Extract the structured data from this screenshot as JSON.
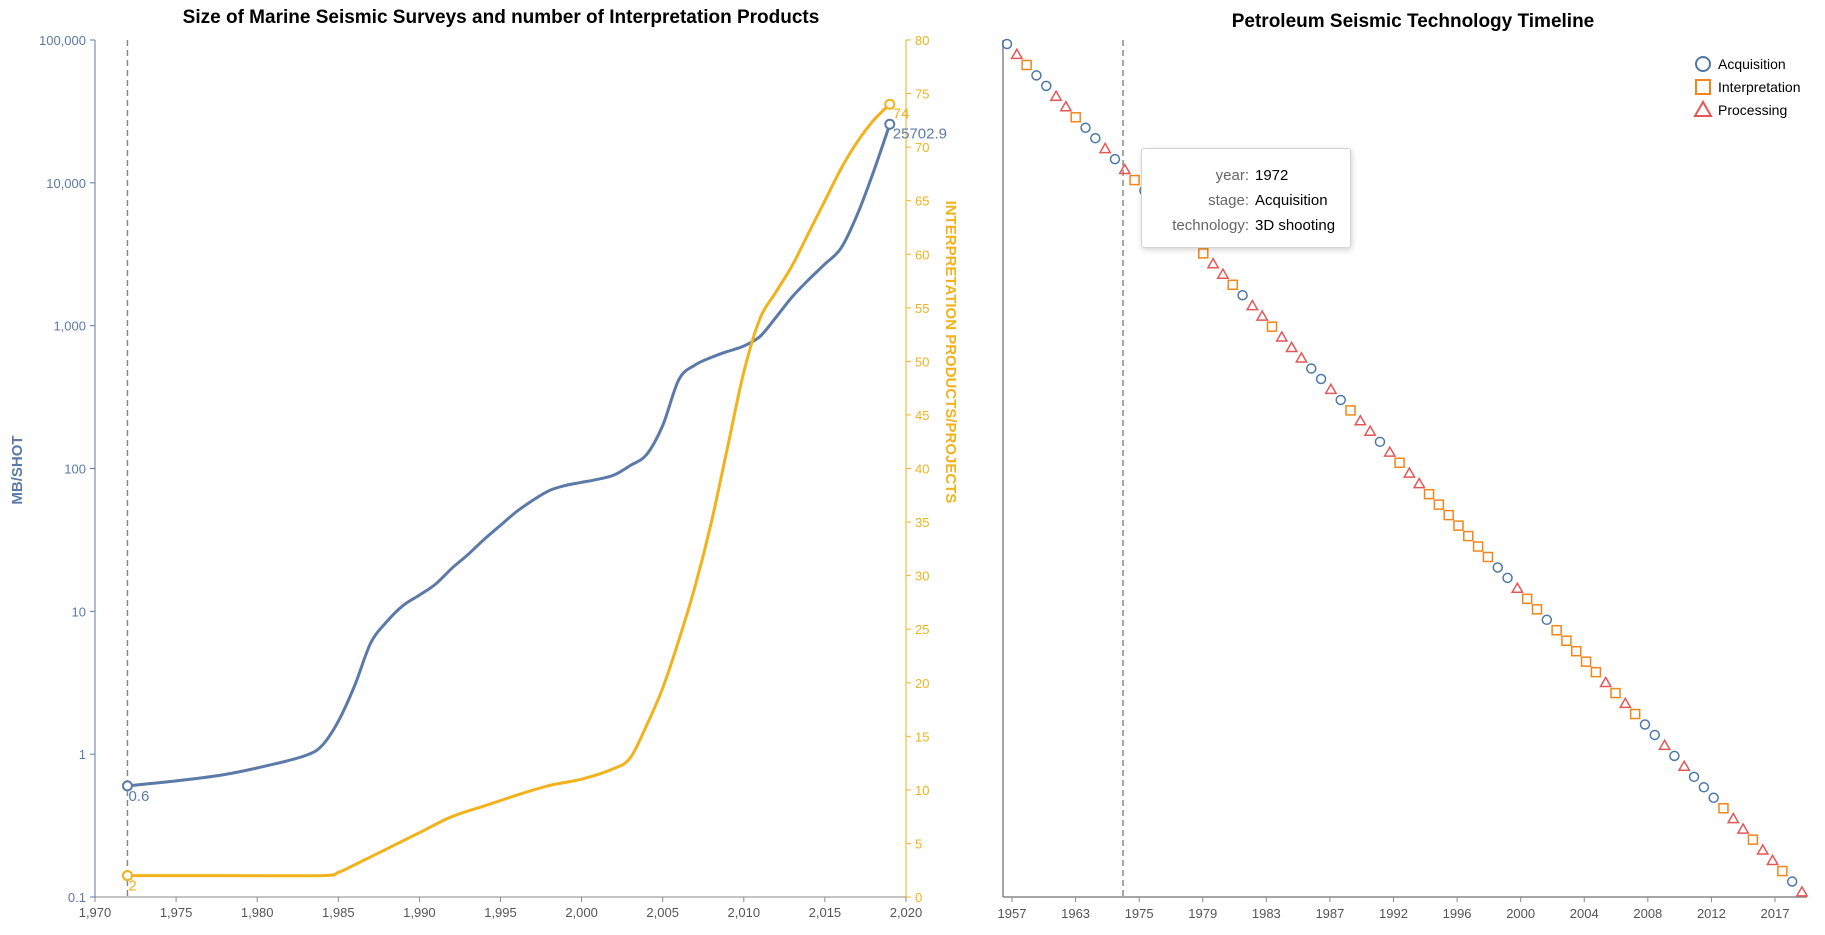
{
  "chart_data": [
    {
      "type": "line",
      "title": "Size of Marine Seismic Surveys and number of Interpretation Products",
      "xlabel": "",
      "x_ticks": [
        "1,970",
        "1,975",
        "1,980",
        "1,985",
        "1,990",
        "1,995",
        "2,000",
        "2,005",
        "2,010",
        "2,015",
        "2,020"
      ],
      "xlim": [
        1970,
        2020
      ],
      "y_left": {
        "label": "MB/SHOT",
        "scale": "log",
        "ylim": [
          0.1,
          100000
        ],
        "ticks": [
          {
            "value": 0.1,
            "label": "0.1"
          },
          {
            "value": 1,
            "label": "1"
          },
          {
            "value": 10,
            "label": "10"
          },
          {
            "value": 100,
            "label": "100"
          },
          {
            "value": 1000,
            "label": "1,000"
          },
          {
            "value": 10000,
            "label": "10,000"
          },
          {
            "value": 100000,
            "label": "100,000"
          }
        ]
      },
      "y_right": {
        "label": "INTERPRETATION PRODUCTS/PROJECTS",
        "scale": "linear",
        "ylim": [
          0,
          80
        ],
        "ticks": [
          "0",
          "5",
          "10",
          "15",
          "20",
          "25",
          "30",
          "35",
          "40",
          "45",
          "50",
          "55",
          "60",
          "65",
          "70",
          "75",
          "80"
        ]
      },
      "series": [
        {
          "axis": "left",
          "color": "#5b7aa8",
          "points": [
            [
              1972,
              0.6
            ],
            [
              1975,
              0.65
            ],
            [
              1978,
              0.72
            ],
            [
              1981,
              0.85
            ],
            [
              1983,
              0.98
            ],
            [
              1984,
              1.15
            ],
            [
              1985,
              1.7
            ],
            [
              1986,
              3.0
            ],
            [
              1987,
              6.0
            ],
            [
              1988,
              8.5
            ],
            [
              1989,
              11
            ],
            [
              1990,
              13
            ],
            [
              1991,
              15.5
            ],
            [
              1992,
              20
            ],
            [
              1993,
              25
            ],
            [
              1994,
              32
            ],
            [
              1995,
              40
            ],
            [
              1996,
              50
            ],
            [
              1997,
              60
            ],
            [
              1998,
              70
            ],
            [
              1999,
              76
            ],
            [
              2000,
              80
            ],
            [
              2001,
              84
            ],
            [
              2002,
              90
            ],
            [
              2003,
              105
            ],
            [
              2004,
              125
            ],
            [
              2005,
              200
            ],
            [
              2006,
              420
            ],
            [
              2007,
              530
            ],
            [
              2008,
              600
            ],
            [
              2009,
              660
            ],
            [
              2010,
              720
            ],
            [
              2011,
              840
            ],
            [
              2012,
              1150
            ],
            [
              2013,
              1600
            ],
            [
              2014,
              2100
            ],
            [
              2015,
              2700
            ],
            [
              2016,
              3500
            ],
            [
              2017,
              6000
            ],
            [
              2018,
              12000
            ],
            [
              2019,
              25702.9
            ]
          ],
          "start_label": "0.6",
          "end_label": "25702.9"
        },
        {
          "axis": "right",
          "color": "#f2b21b",
          "points": [
            [
              1972,
              2
            ],
            [
              1978,
              2
            ],
            [
              1984,
              2
            ],
            [
              1985,
              2.3
            ],
            [
              1986,
              3
            ],
            [
              1988,
              4.5
            ],
            [
              1990,
              6
            ],
            [
              1992,
              7.5
            ],
            [
              1994,
              8.5
            ],
            [
              1996,
              9.5
            ],
            [
              1998,
              10.4
            ],
            [
              2000,
              11
            ],
            [
              2002,
              12
            ],
            [
              2003,
              13
            ],
            [
              2004,
              16
            ],
            [
              2005,
              19.5
            ],
            [
              2006,
              24
            ],
            [
              2007,
              29
            ],
            [
              2008,
              35
            ],
            [
              2009,
              42
            ],
            [
              2010,
              49
            ],
            [
              2011,
              54
            ],
            [
              2012,
              56.5
            ],
            [
              2013,
              59
            ],
            [
              2014,
              62
            ],
            [
              2015,
              65
            ],
            [
              2016,
              68
            ],
            [
              2017,
              70.5
            ],
            [
              2018,
              72.5
            ],
            [
              2019,
              74
            ]
          ],
          "start_label": "2",
          "end_label": "74"
        }
      ]
    },
    {
      "type": "scatter",
      "title": "Petroleum Seismic Technology Timeline",
      "x_ticks": [
        "1957",
        "1963",
        "1975",
        "1979",
        "1983",
        "1987",
        "1992",
        "1996",
        "2000",
        "2004",
        "2008",
        "2012",
        "2017"
      ],
      "legend": {
        "placement": "top-right",
        "entries": [
          {
            "label": "Acquisition",
            "shape": "circle",
            "color": "#4c78a8"
          },
          {
            "label": "Interpretation",
            "shape": "square",
            "color": "#f58518"
          },
          {
            "label": "Processing",
            "shape": "triangle",
            "color": "#e45756"
          }
        ]
      },
      "points": [
        [
          "Acquisition",
          0
        ],
        [
          "Processing",
          1
        ],
        [
          "Interpretation",
          2
        ],
        [
          "Acquisition",
          3
        ],
        [
          "Acquisition",
          4
        ],
        [
          "Processing",
          5
        ],
        [
          "Processing",
          6
        ],
        [
          "Interpretation",
          7
        ],
        [
          "Acquisition",
          8
        ],
        [
          "Acquisition",
          9
        ],
        [
          "Processing",
          10
        ],
        [
          "Acquisition",
          11
        ],
        [
          "Processing",
          12
        ],
        [
          "Interpretation",
          13
        ],
        [
          "Acquisition",
          14
        ],
        [
          "Processing",
          15
        ],
        [
          "Acquisition",
          16
        ],
        [
          "Interpretation",
          17
        ],
        [
          "Acquisition",
          18
        ],
        [
          "Processing",
          19
        ],
        [
          "Interpretation",
          20
        ],
        [
          "Processing",
          21
        ],
        [
          "Processing",
          22
        ],
        [
          "Interpretation",
          23
        ],
        [
          "Acquisition",
          24
        ],
        [
          "Processing",
          25
        ],
        [
          "Processing",
          26
        ],
        [
          "Interpretation",
          27
        ],
        [
          "Processing",
          28
        ],
        [
          "Processing",
          29
        ],
        [
          "Processing",
          30
        ],
        [
          "Acquisition",
          31
        ],
        [
          "Acquisition",
          32
        ],
        [
          "Processing",
          33
        ],
        [
          "Acquisition",
          34
        ],
        [
          "Interpretation",
          35
        ],
        [
          "Processing",
          36
        ],
        [
          "Processing",
          37
        ],
        [
          "Acquisition",
          38
        ],
        [
          "Processing",
          39
        ],
        [
          "Interpretation",
          40
        ],
        [
          "Processing",
          41
        ],
        [
          "Processing",
          42
        ],
        [
          "Interpretation",
          43
        ],
        [
          "Interpretation",
          44
        ],
        [
          "Interpretation",
          45
        ],
        [
          "Interpretation",
          46
        ],
        [
          "Interpretation",
          47
        ],
        [
          "Interpretation",
          48
        ],
        [
          "Interpretation",
          49
        ],
        [
          "Acquisition",
          50
        ],
        [
          "Acquisition",
          51
        ],
        [
          "Processing",
          52
        ],
        [
          "Interpretation",
          53
        ],
        [
          "Interpretation",
          54
        ],
        [
          "Acquisition",
          55
        ],
        [
          "Interpretation",
          56
        ],
        [
          "Interpretation",
          57
        ],
        [
          "Interpretation",
          58
        ],
        [
          "Interpretation",
          59
        ],
        [
          "Interpretation",
          60
        ],
        [
          "Processing",
          61
        ],
        [
          "Interpretation",
          62
        ],
        [
          "Processing",
          63
        ],
        [
          "Interpretation",
          64
        ],
        [
          "Acquisition",
          65
        ],
        [
          "Acquisition",
          66
        ],
        [
          "Processing",
          67
        ],
        [
          "Acquisition",
          68
        ],
        [
          "Processing",
          69
        ],
        [
          "Acquisition",
          70
        ],
        [
          "Acquisition",
          71
        ],
        [
          "Acquisition",
          72
        ],
        [
          "Interpretation",
          73
        ],
        [
          "Processing",
          74
        ],
        [
          "Processing",
          75
        ],
        [
          "Interpretation",
          76
        ],
        [
          "Processing",
          77
        ],
        [
          "Processing",
          78
        ],
        [
          "Interpretation",
          79
        ],
        [
          "Acquisition",
          80
        ],
        [
          "Processing",
          81
        ]
      ],
      "tooltip": {
        "rows": [
          {
            "key": "year:",
            "value": "1972"
          },
          {
            "key": "stage:",
            "value": "Acquisition"
          },
          {
            "key": "technology:",
            "value": "3D shooting"
          }
        ]
      }
    }
  ]
}
